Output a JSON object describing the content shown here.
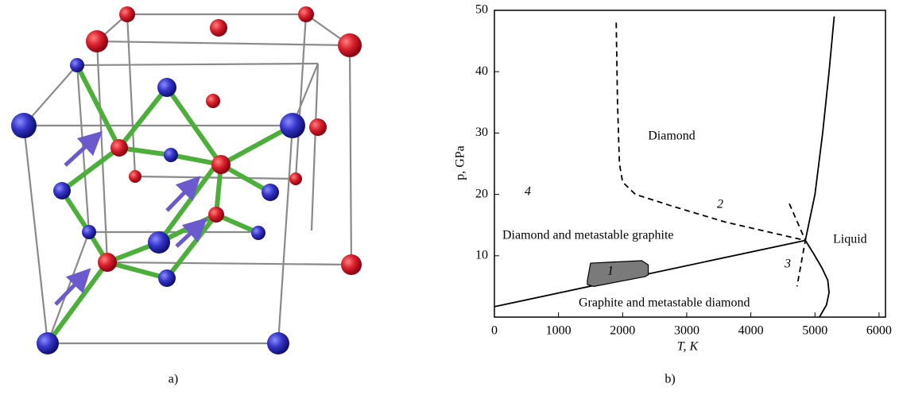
{
  "figure": {
    "captions": [
      "a)",
      "b)"
    ]
  },
  "chart_data": {
    "type": "line",
    "xlabel": "T, K",
    "ylabel": "p, GPa",
    "xlim": [
      0,
      6100
    ],
    "ylim": [
      0,
      50
    ],
    "xticks": [
      0,
      1000,
      2000,
      3000,
      4000,
      5000,
      6000
    ],
    "yticks": [
      10,
      20,
      30,
      40,
      50
    ],
    "series": [
      {
        "color": "#000000",
        "style": "solid",
        "x": [
          0,
          4850
        ],
        "values": [
          1.7,
          12.5
        ]
      },
      {
        "color": "#000000",
        "style": "solid",
        "x": [
          5300,
          5220,
          5120,
          5000,
          4850,
          4970,
          5110,
          5200,
          5220,
          5180,
          5070
        ],
        "values": [
          49,
          40,
          30,
          20,
          12.5,
          10.5,
          8,
          6,
          4,
          2,
          0
        ]
      },
      {
        "color": "#000000",
        "style": "dashed",
        "x": [
          1900,
          1920,
          1950,
          2000,
          2200,
          2800,
          3600,
          4850
        ],
        "values": [
          48,
          35,
          25,
          22,
          20,
          18,
          15.5,
          12.5
        ]
      },
      {
        "color": "#000000",
        "style": "dashed",
        "x": [
          4600,
          4850,
          4720
        ],
        "values": [
          18.5,
          12.5,
          5
        ]
      },
      {
        "color": "#000000",
        "style": "region",
        "fill": "#7a7a7a",
        "x": [
          1450,
          1500,
          2300,
          2400,
          2400,
          2350,
          1550,
          1450
        ],
        "values": [
          6.0,
          8.8,
          9.2,
          8.5,
          6.9,
          6.6,
          5.0,
          5.3
        ]
      }
    ],
    "annotations": [
      "Diamond",
      "4",
      "2",
      "Diamond and metastable graphite",
      "Liquid",
      "1",
      "3",
      "Graphite and metastable diamond"
    ]
  }
}
